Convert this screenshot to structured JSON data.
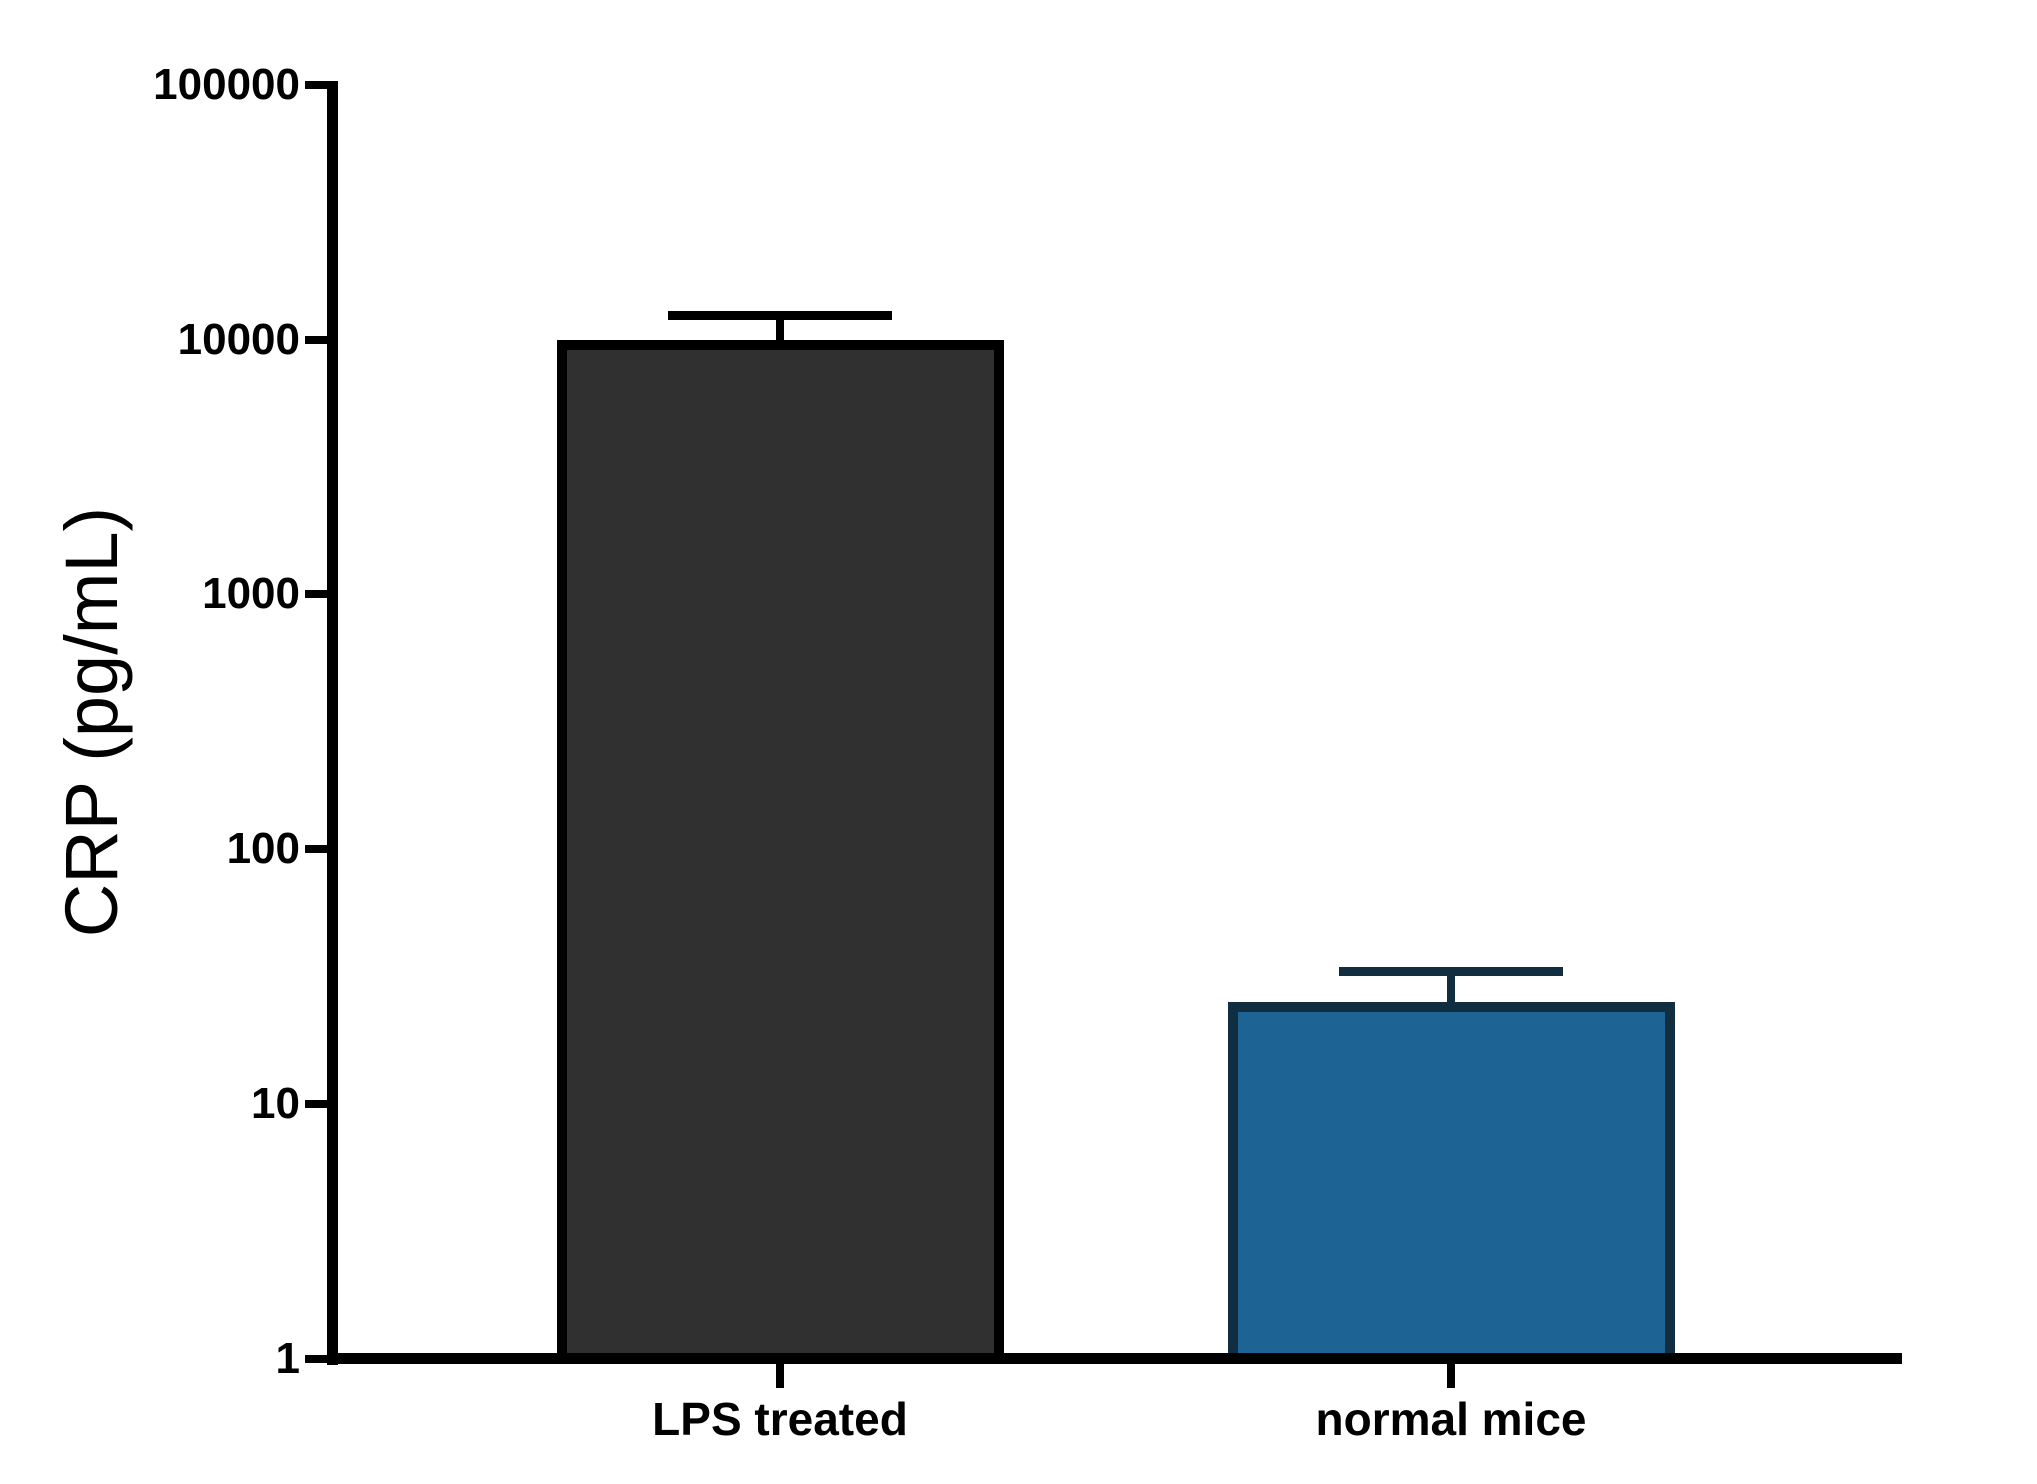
{
  "chart_data": {
    "type": "bar",
    "title": "",
    "xlabel": "",
    "ylabel": "CRP (pg/mL)",
    "yscale": "log",
    "ylim": [
      1,
      100000
    ],
    "ytick_values": [
      100000,
      10000,
      1000,
      100,
      10,
      1
    ],
    "ytick_labels": [
      "100000",
      "10000",
      "1000",
      "100",
      "10",
      "1"
    ],
    "categories": [
      "LPS treated",
      "normal mice"
    ],
    "series": [
      {
        "name": "CRP",
        "values": [
          10000,
          25
        ],
        "error_upper": [
          12500,
          33
        ]
      }
    ],
    "grid": false,
    "legend": "none",
    "colors": {
      "background": "#ffffff",
      "axis": "#000000",
      "text": "#000000",
      "bar_fills": [
        "#303030",
        "#1D6394"
      ],
      "bar_borders": [
        "#000000",
        "#102E3F"
      ],
      "error_bars": [
        "#000000",
        "#102E3F"
      ]
    }
  }
}
